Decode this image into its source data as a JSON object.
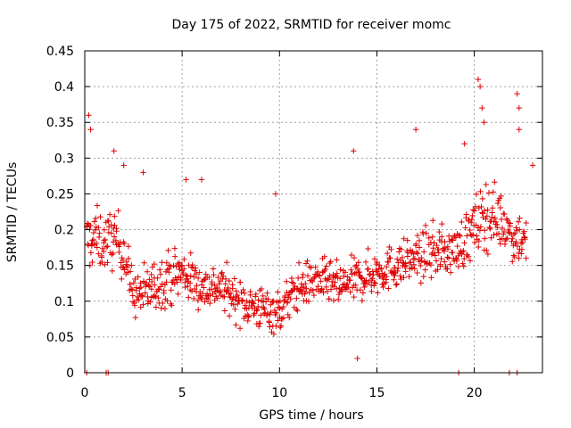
{
  "chart_data": {
    "type": "scatter",
    "title": "Day 175 of 2022, SRMTID for receiver momc",
    "xlabel": "GPS time / hours",
    "ylabel": "SRMTID / TECUs",
    "xlim": [
      0,
      23.5
    ],
    "ylim": [
      0,
      0.45
    ],
    "xticks": [
      0,
      5,
      10,
      15,
      20
    ],
    "xtick_labels": [
      "0",
      "5",
      "10",
      "15",
      "20"
    ],
    "yticks": [
      0,
      0.05,
      0.1,
      0.15,
      0.2,
      0.25,
      0.3,
      0.35,
      0.4,
      0.45
    ],
    "ytick_labels": [
      "0",
      "0.05",
      "0.1",
      "0.15",
      "0.2",
      "0.25",
      "0.3",
      "0.35",
      "0.4",
      "0.45"
    ],
    "grid": true,
    "marker": "+",
    "color": "#e00000",
    "series": [
      {
        "name": "SRMTID",
        "x_start": 0.1,
        "x_step": 0.05,
        "envelope": {
          "x": [
            0,
            0.5,
            1,
            1.5,
            2,
            2.5,
            3,
            4,
            5,
            6,
            7,
            8,
            9,
            10,
            11,
            12,
            13,
            14,
            15,
            16,
            17,
            18,
            19,
            20,
            20.5,
            21,
            21.5,
            22,
            22.5,
            23
          ],
          "center": [
            0.18,
            0.19,
            0.18,
            0.19,
            0.17,
            0.11,
            0.11,
            0.13,
            0.14,
            0.12,
            0.12,
            0.1,
            0.09,
            0.085,
            0.12,
            0.13,
            0.12,
            0.13,
            0.14,
            0.15,
            0.16,
            0.17,
            0.17,
            0.2,
            0.22,
            0.22,
            0.21,
            0.19,
            0.19,
            0.16
          ],
          "spread": [
            0.07,
            0.07,
            0.06,
            0.07,
            0.06,
            0.05,
            0.06,
            0.06,
            0.06,
            0.05,
            0.05,
            0.05,
            0.05,
            0.05,
            0.05,
            0.05,
            0.05,
            0.05,
            0.05,
            0.05,
            0.05,
            0.06,
            0.05,
            0.07,
            0.08,
            0.07,
            0.06,
            0.06,
            0.06,
            0.05
          ]
        },
        "outliers": [
          {
            "x": 0.2,
            "y": 0.36
          },
          {
            "x": 0.3,
            "y": 0.34
          },
          {
            "x": 1.5,
            "y": 0.31
          },
          {
            "x": 2.0,
            "y": 0.29
          },
          {
            "x": 3.0,
            "y": 0.28
          },
          {
            "x": 5.2,
            "y": 0.27
          },
          {
            "x": 6.0,
            "y": 0.27
          },
          {
            "x": 9.8,
            "y": 0.25
          },
          {
            "x": 13.8,
            "y": 0.31
          },
          {
            "x": 14.0,
            "y": 0.02
          },
          {
            "x": 17.0,
            "y": 0.34
          },
          {
            "x": 19.5,
            "y": 0.32
          },
          {
            "x": 20.2,
            "y": 0.41
          },
          {
            "x": 20.3,
            "y": 0.4
          },
          {
            "x": 20.4,
            "y": 0.37
          },
          {
            "x": 20.5,
            "y": 0.35
          },
          {
            "x": 22.2,
            "y": 0.39
          },
          {
            "x": 22.3,
            "y": 0.37
          },
          {
            "x": 22.3,
            "y": 0.34
          },
          {
            "x": 23.0,
            "y": 0.29
          }
        ],
        "zero_values": [
          0.1,
          1.1,
          1.2,
          19.2,
          21.8,
          22.2
        ]
      }
    ]
  }
}
